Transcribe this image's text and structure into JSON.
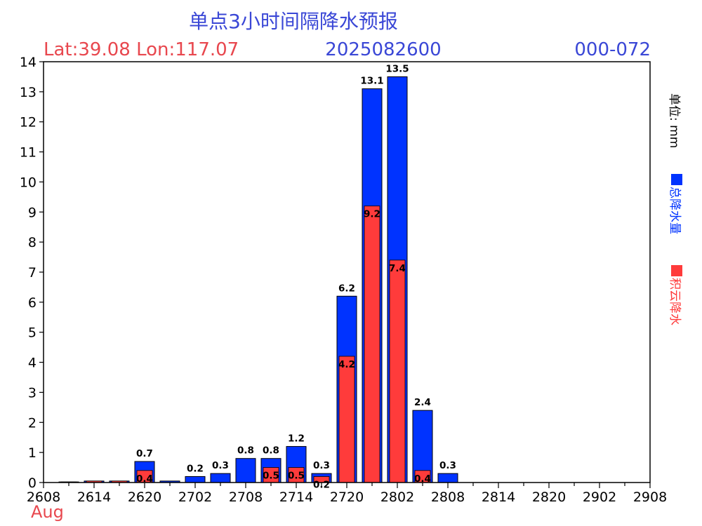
{
  "header": {
    "title": "单点3小时间隔降水预报",
    "latlon": "Lat:39.08 Lon:117.07",
    "init_time": "2025082600",
    "range": "000-072"
  },
  "colors": {
    "total": "#0033ff",
    "convective": "#ff3b3b",
    "title": "#3a47d6",
    "red_text": "#e8474e",
    "blue_text": "#3a47d6"
  },
  "chart_data": {
    "type": "bar",
    "title": "单点3小时间隔降水预报",
    "xlabel": "Aug",
    "ylabel": "单位: mm",
    "ylim": [
      0,
      14
    ],
    "yticks": [
      0,
      1,
      2,
      3,
      4,
      5,
      6,
      7,
      8,
      9,
      10,
      11,
      12,
      13,
      14
    ],
    "xtick_labels": [
      "2608",
      "2614",
      "2620",
      "2702",
      "2708",
      "2714",
      "2720",
      "2802",
      "2808",
      "2814",
      "2820",
      "2902",
      "2908"
    ],
    "x_month_label": "Aug",
    "legend": {
      "position": "right",
      "entries": [
        "总降水量",
        "积云降水"
      ]
    },
    "categories": [
      "2611",
      "2614",
      "2617",
      "2620",
      "2623",
      "2702",
      "2705",
      "2708",
      "2711",
      "2714",
      "2717",
      "2720",
      "2723",
      "2802",
      "2805",
      "2808"
    ],
    "series": [
      {
        "name": "总降水量",
        "values": [
          0.02,
          0.05,
          0.05,
          0.7,
          0.05,
          0.2,
          0.3,
          0.8,
          0.8,
          1.2,
          0.3,
          6.2,
          13.1,
          13.5,
          2.4,
          0.3
        ],
        "labels": [
          "",
          "",
          "",
          "0.7",
          "",
          "0.2",
          "0.3",
          "0.8",
          "0.8",
          "1.2",
          "0.3",
          "6.2",
          "13.1",
          "13.5",
          "2.4",
          "0.3"
        ]
      },
      {
        "name": "积云降水",
        "values": [
          0.02,
          0.05,
          0.05,
          0.4,
          0.0,
          0.0,
          0.0,
          0.0,
          0.5,
          0.5,
          0.2,
          4.2,
          9.2,
          7.4,
          0.4,
          0.0
        ],
        "labels": [
          "",
          "",
          "",
          "0.4",
          "",
          "",
          "",
          "",
          "0.5",
          "0.5",
          "0.2",
          "4.2",
          "9.2",
          "7.4",
          "0.4",
          ""
        ]
      }
    ]
  }
}
